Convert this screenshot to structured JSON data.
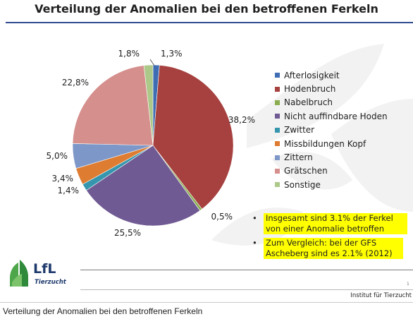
{
  "slide": {
    "title": "Verteilung der Anomalien bei den betroffenen Ferkeln",
    "footer": {
      "institute": "Institut für Tierzucht",
      "page_number": "1"
    },
    "logo": {
      "text": "LfL",
      "subtitle": "Tierzucht"
    },
    "notes": [
      "Insgesamt sind 3.1% der Ferkel von einer Anomalie betroffen",
      "Zum Vergleich: bei der GFS Ascheberg sind es 2.1% (2012)"
    ],
    "bullet": "•"
  },
  "caption": "Verteilung der Anomalien bei den betroffenen Ferkeln",
  "chart_data": {
    "type": "pie",
    "title": "Verteilung der Anomalien bei den betroffenen Ferkeln",
    "categories": [
      "Afterlosigkeit",
      "Hodenbruch",
      "Nabelbruch",
      "Nicht auffindbare Hoden",
      "Zwitter",
      "Missbildungen Kopf",
      "Zittern",
      "Grätschen",
      "Sonstige"
    ],
    "values": [
      1.3,
      38.2,
      0.5,
      25.5,
      1.4,
      3.4,
      5.0,
      22.8,
      1.8
    ],
    "data_labels": [
      "1,3%",
      "38,2%",
      "0,5%",
      "25,5%",
      "1,4%",
      "3,4%",
      "5,0%",
      "22,8%",
      "1,8%"
    ],
    "colors": [
      "#3f6db4",
      "#a6413f",
      "#8aae4f",
      "#705a93",
      "#3596ae",
      "#de7c31",
      "#7d97c8",
      "#d58f8d",
      "#adc98a"
    ],
    "legend_position": "right"
  }
}
